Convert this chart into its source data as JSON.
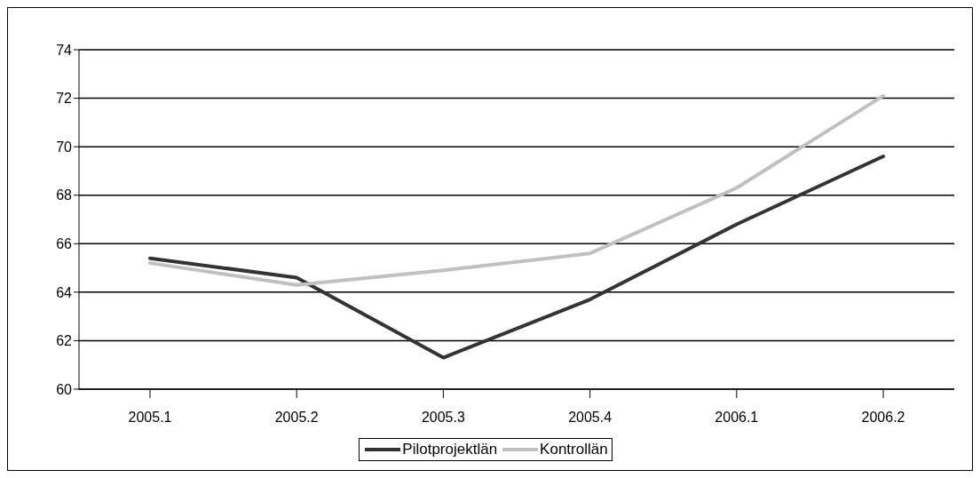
{
  "chart_data": {
    "type": "line",
    "categories": [
      "2005.1",
      "2005.2",
      "2005.3",
      "2005.4",
      "2006.1",
      "2006.2"
    ],
    "series": [
      {
        "name": "Pilotprojektlän",
        "color": "#333333",
        "values": [
          65.4,
          64.6,
          61.3,
          63.7,
          66.8,
          69.6
        ]
      },
      {
        "name": "Kontrollän",
        "color": "#c0c0c0",
        "values": [
          65.2,
          64.3,
          64.9,
          65.6,
          68.3,
          72.1
        ]
      }
    ],
    "ylim": [
      60,
      74
    ],
    "yticks": [
      60,
      62,
      64,
      66,
      68,
      70,
      72,
      74
    ],
    "grid": "y",
    "legend": "bottom",
    "marker": "none",
    "line_style": "solid"
  }
}
